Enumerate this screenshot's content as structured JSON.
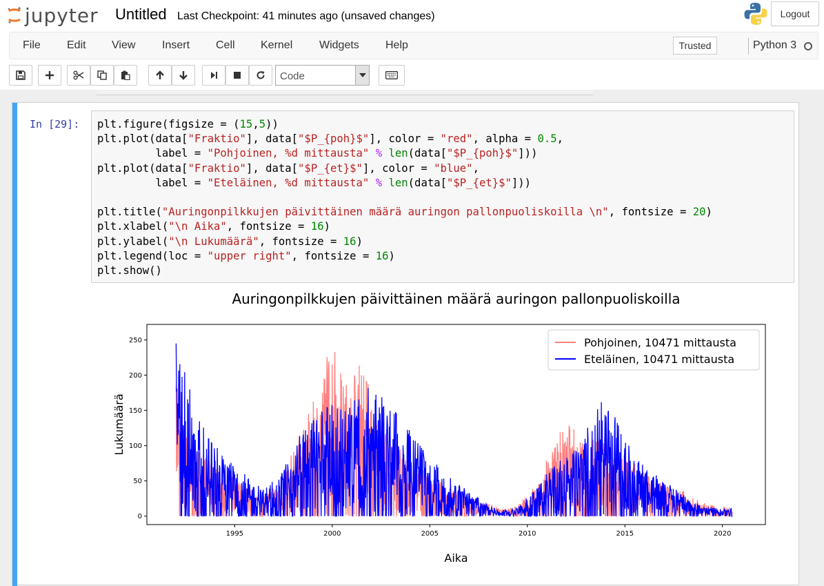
{
  "header": {
    "logo_text": "jupyter",
    "notebook_title": "Untitled",
    "checkpoint": "Last Checkpoint: 41 minutes ago  (unsaved changes)",
    "logout_label": "Logout"
  },
  "menubar": {
    "items": [
      "File",
      "Edit",
      "View",
      "Insert",
      "Cell",
      "Kernel",
      "Widgets",
      "Help"
    ],
    "trusted_label": "Trusted",
    "kernel_name": "Python 3"
  },
  "toolbar": {
    "cell_type": "Code",
    "icons": [
      "save-icon",
      "plus-icon",
      "cut-icon",
      "copy-icon",
      "paste-icon",
      "arrow-up-icon",
      "arrow-down-icon",
      "run-icon",
      "stop-icon",
      "restart-icon",
      "keyboard-icon"
    ]
  },
  "cell": {
    "prompt": "In [29]:",
    "code_lines": [
      "plt.figure(figsize = (15,5))",
      "plt.plot(data[\"Fraktio\"], data[\"$P_{poh}$\"], color = \"red\", alpha = 0.5,",
      "         label = \"Pohjoinen, %d mittausta\" % len(data[\"$P_{poh}$\"]))",
      "plt.plot(data[\"Fraktio\"], data[\"$P_{et}$\"], color = \"blue\",",
      "         label = \"Eteläinen, %d mittausta\" % len(data[\"$P_{et}$\"]))",
      "",
      "plt.title(\"Auringonpilkkujen päivittäinen määrä auringon pallonpuoliskoilla \\n\", fontsize = 20)",
      "plt.xlabel(\"\\n Aika\", fontsize = 16)",
      "plt.ylabel(\"\\n Lukumäärä\", fontsize = 16)",
      "plt.legend(loc = \"upper right\", fontsize = 16)",
      "plt.show()"
    ]
  },
  "colors": {
    "cell_bar": "#42a5f5",
    "prompt": "#303f9f",
    "series_north": "#ff8080",
    "series_south": "#0000ff"
  },
  "chart_data": {
    "type": "line",
    "title": "Auringonpilkkujen päivittäinen määrä auringon pallonpuoliskoilla",
    "xlabel": "Aika",
    "ylabel": "Lukumäärä",
    "xlim": [
      1990.5,
      2022.2
    ],
    "ylim": [
      -12,
      272
    ],
    "xticks": [
      1995,
      2000,
      2005,
      2010,
      2015,
      2020
    ],
    "yticks": [
      0,
      50,
      100,
      150,
      200,
      250
    ],
    "legend_position": "upper-right",
    "grid": false,
    "series": [
      {
        "name": "Pohjoinen, 10471 mittausta",
        "color": "#ff0000",
        "alpha": 0.5,
        "x": [
          1992.0,
          1992.5,
          1993.0,
          1993.5,
          1994.0,
          1994.5,
          1995.0,
          1995.5,
          1996.0,
          1996.5,
          1997.0,
          1997.5,
          1998.0,
          1998.5,
          1999.0,
          1999.5,
          2000.0,
          2000.5,
          2001.0,
          2001.5,
          2002.0,
          2002.5,
          2003.0,
          2003.5,
          2004.0,
          2004.5,
          2005.0,
          2005.5,
          2006.0,
          2006.5,
          2007.0,
          2007.5,
          2008.0,
          2008.5,
          2009.0,
          2009.5,
          2010.0,
          2010.5,
          2011.0,
          2011.5,
          2012.0,
          2012.5,
          2013.0,
          2013.5,
          2014.0,
          2014.5,
          2015.0,
          2015.5,
          2016.0,
          2016.5,
          2017.0,
          2017.5,
          2018.0,
          2018.5,
          2019.0,
          2019.5,
          2020.0,
          2020.5
        ],
        "y": [
          185,
          120,
          105,
          85,
          70,
          60,
          55,
          45,
          35,
          30,
          45,
          60,
          95,
          125,
          160,
          200,
          255,
          195,
          190,
          225,
          170,
          130,
          110,
          95,
          80,
          70,
          55,
          50,
          40,
          35,
          28,
          22,
          18,
          12,
          10,
          15,
          30,
          45,
          80,
          110,
          135,
          120,
          100,
          115,
          105,
          90,
          80,
          75,
          65,
          55,
          50,
          40,
          35,
          25,
          20,
          15,
          12,
          15
        ]
      },
      {
        "name": "Eteläinen, 10471 mittausta",
        "color": "#0000ff",
        "alpha": 1.0,
        "x": [
          1992.0,
          1992.5,
          1993.0,
          1993.5,
          1994.0,
          1994.5,
          1995.0,
          1995.5,
          1996.0,
          1996.5,
          1997.0,
          1997.5,
          1998.0,
          1998.5,
          1999.0,
          1999.5,
          2000.0,
          2000.5,
          2001.0,
          2001.5,
          2002.0,
          2002.5,
          2003.0,
          2003.5,
          2004.0,
          2004.5,
          2005.0,
          2005.5,
          2006.0,
          2006.5,
          2007.0,
          2007.5,
          2008.0,
          2008.5,
          2009.0,
          2009.5,
          2010.0,
          2010.5,
          2011.0,
          2011.5,
          2012.0,
          2012.5,
          2013.0,
          2013.5,
          2014.0,
          2014.5,
          2015.0,
          2015.5,
          2016.0,
          2016.5,
          2017.0,
          2017.5,
          2018.0,
          2018.5,
          2019.0,
          2019.5,
          2020.0,
          2020.5
        ],
        "y": [
          245,
          200,
          150,
          120,
          100,
          85,
          70,
          60,
          45,
          40,
          50,
          65,
          100,
          120,
          135,
          150,
          160,
          150,
          160,
          175,
          185,
          170,
          155,
          140,
          120,
          100,
          80,
          70,
          55,
          45,
          35,
          25,
          15,
          10,
          8,
          12,
          25,
          40,
          60,
          75,
          85,
          95,
          120,
          150,
          170,
          140,
          110,
          85,
          70,
          60,
          50,
          40,
          30,
          20,
          15,
          12,
          10,
          12
        ]
      }
    ]
  }
}
